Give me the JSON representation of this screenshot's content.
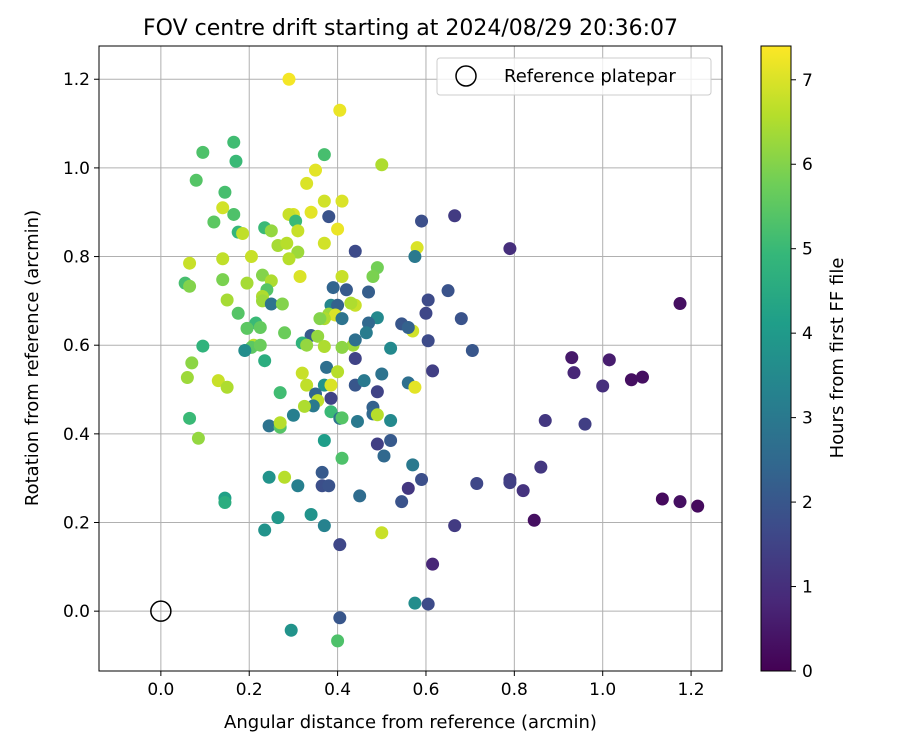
{
  "chart_data": {
    "type": "scatter",
    "title": "FOV centre drift starting at 2024/08/29 20:36:07",
    "xlabel": "Angular distance from reference (arcmin)",
    "ylabel": "Rotation from reference (arcmin)",
    "xlim": [
      -0.14,
      1.27
    ],
    "ylim": [
      -0.135,
      1.275
    ],
    "xticks": [
      "0.0",
      "0.2",
      "0.4",
      "0.6",
      "0.8",
      "1.0",
      "1.2"
    ],
    "yticks": [
      "0.0",
      "0.2",
      "0.4",
      "0.6",
      "0.8",
      "1.0",
      "1.2"
    ],
    "grid": true,
    "legend": {
      "placement": "top-right",
      "label": "Reference platepar"
    },
    "reference_point": {
      "x": 0.0,
      "y": 0.0,
      "marker": "hollow-circle"
    },
    "colorbar": {
      "label": "Hours from first FF file",
      "colormap": "viridis",
      "range": [
        0,
        7.4
      ],
      "ticks": [
        "0",
        "1",
        "2",
        "3",
        "4",
        "5",
        "6",
        "7"
      ]
    },
    "points": [
      [
        0.29,
        1.2,
        7.3
      ],
      [
        0.405,
        1.13,
        7.2
      ],
      [
        0.095,
        1.035,
        5.3
      ],
      [
        0.165,
        1.058,
        5.1
      ],
      [
        0.17,
        1.015,
        5.0
      ],
      [
        0.5,
        1.007,
        6.5
      ],
      [
        0.37,
        1.03,
        5.2
      ],
      [
        0.08,
        0.972,
        5.4
      ],
      [
        0.35,
        0.995,
        7.1
      ],
      [
        0.33,
        0.965,
        7.0
      ],
      [
        0.145,
        0.945,
        5.2
      ],
      [
        0.41,
        0.925,
        7.0
      ],
      [
        0.37,
        0.925,
        6.9
      ],
      [
        0.14,
        0.91,
        6.9
      ],
      [
        0.165,
        0.895,
        5.3
      ],
      [
        0.3,
        0.895,
        7.0
      ],
      [
        0.29,
        0.895,
        6.8
      ],
      [
        0.34,
        0.9,
        7.1
      ],
      [
        0.305,
        0.88,
        5.0
      ],
      [
        0.38,
        0.89,
        1.9
      ],
      [
        0.12,
        0.878,
        5.5
      ],
      [
        0.59,
        0.88,
        1.8
      ],
      [
        0.665,
        0.892,
        1.3
      ],
      [
        0.235,
        0.865,
        5.0
      ],
      [
        0.175,
        0.855,
        4.9
      ],
      [
        0.185,
        0.852,
        6.7
      ],
      [
        0.25,
        0.858,
        6.2
      ],
      [
        0.31,
        0.858,
        6.8
      ],
      [
        0.4,
        0.862,
        7.2
      ],
      [
        0.37,
        0.83,
        6.9
      ],
      [
        0.265,
        0.825,
        6.4
      ],
      [
        0.285,
        0.83,
        6.6
      ],
      [
        0.31,
        0.81,
        6.3
      ],
      [
        0.44,
        0.812,
        1.7
      ],
      [
        0.58,
        0.82,
        7.0
      ],
      [
        0.79,
        0.818,
        1.0
      ],
      [
        0.14,
        0.795,
        6.7
      ],
      [
        0.205,
        0.8,
        6.8
      ],
      [
        0.29,
        0.795,
        6.6
      ],
      [
        0.575,
        0.8,
        3.0
      ],
      [
        0.065,
        0.785,
        6.8
      ],
      [
        0.41,
        0.755,
        6.8
      ],
      [
        0.49,
        0.775,
        5.8
      ],
      [
        0.48,
        0.755,
        5.9
      ],
      [
        0.23,
        0.758,
        6.0
      ],
      [
        0.315,
        0.755,
        7.0
      ],
      [
        0.055,
        0.74,
        5.2
      ],
      [
        0.065,
        0.733,
        6.0
      ],
      [
        0.14,
        0.748,
        5.9
      ],
      [
        0.195,
        0.74,
        6.4
      ],
      [
        0.25,
        0.745,
        6.5
      ],
      [
        0.24,
        0.725,
        5.4
      ],
      [
        0.39,
        0.73,
        2.4
      ],
      [
        0.42,
        0.725,
        2.1
      ],
      [
        0.47,
        0.72,
        2.2
      ],
      [
        0.23,
        0.71,
        6.5
      ],
      [
        0.65,
        0.723,
        1.9
      ],
      [
        0.15,
        0.702,
        6.4
      ],
      [
        0.23,
        0.7,
        6.3
      ],
      [
        0.25,
        0.693,
        2.8
      ],
      [
        0.275,
        0.693,
        6.0
      ],
      [
        0.385,
        0.69,
        3.4
      ],
      [
        0.4,
        0.69,
        2.3
      ],
      [
        0.44,
        0.69,
        6.8
      ],
      [
        0.43,
        0.695,
        6.5
      ],
      [
        0.605,
        0.702,
        1.7
      ],
      [
        0.175,
        0.672,
        5.4
      ],
      [
        0.38,
        0.67,
        6.3
      ],
      [
        0.395,
        0.668,
        7.0
      ],
      [
        0.37,
        0.66,
        6.5
      ],
      [
        0.41,
        0.66,
        2.8
      ],
      [
        0.36,
        0.66,
        6.0
      ],
      [
        0.49,
        0.662,
        3.5
      ],
      [
        0.47,
        0.65,
        2.5
      ],
      [
        0.545,
        0.648,
        2.0
      ],
      [
        0.57,
        0.632,
        6.9
      ],
      [
        0.56,
        0.64,
        2.3
      ],
      [
        0.68,
        0.66,
        1.9
      ],
      [
        0.6,
        0.672,
        1.6
      ],
      [
        0.215,
        0.65,
        5.0
      ],
      [
        0.225,
        0.64,
        5.6
      ],
      [
        0.195,
        0.638,
        5.5
      ],
      [
        0.28,
        0.628,
        5.7
      ],
      [
        0.34,
        0.622,
        2.1
      ],
      [
        0.355,
        0.62,
        6.2
      ],
      [
        0.465,
        0.628,
        3.1
      ],
      [
        0.435,
        0.6,
        6.3
      ],
      [
        0.44,
        0.612,
        2.7
      ],
      [
        0.32,
        0.605,
        4.8
      ],
      [
        0.33,
        0.6,
        6.2
      ],
      [
        0.21,
        0.6,
        6.6
      ],
      [
        0.205,
        0.595,
        5.5
      ],
      [
        0.095,
        0.598,
        4.8
      ],
      [
        0.19,
        0.588,
        3.6
      ],
      [
        0.225,
        0.6,
        5.7
      ],
      [
        0.37,
        0.597,
        6.5
      ],
      [
        0.41,
        0.595,
        6.1
      ],
      [
        0.52,
        0.593,
        3.5
      ],
      [
        0.605,
        0.61,
        1.7
      ],
      [
        0.705,
        0.588,
        2.0
      ],
      [
        0.44,
        0.57,
        1.5
      ],
      [
        0.235,
        0.565,
        4.6
      ],
      [
        0.07,
        0.56,
        6.1
      ],
      [
        0.375,
        0.55,
        2.7
      ],
      [
        0.06,
        0.527,
        6.3
      ],
      [
        0.13,
        0.52,
        6.8
      ],
      [
        0.15,
        0.505,
        6.5
      ],
      [
        0.32,
        0.537,
        6.8
      ],
      [
        0.33,
        0.51,
        6.7
      ],
      [
        0.37,
        0.51,
        3.8
      ],
      [
        0.385,
        0.51,
        7.0
      ],
      [
        0.4,
        0.54,
        6.6
      ],
      [
        0.44,
        0.51,
        2.0
      ],
      [
        0.46,
        0.52,
        3.0
      ],
      [
        0.49,
        0.495,
        1.5
      ],
      [
        0.5,
        0.535,
        2.8
      ],
      [
        0.56,
        0.515,
        2.7
      ],
      [
        0.575,
        0.505,
        7.1
      ],
      [
        0.615,
        0.542,
        1.4
      ],
      [
        0.27,
        0.493,
        5.1
      ],
      [
        0.35,
        0.49,
        2.4
      ],
      [
        0.355,
        0.475,
        6.7
      ],
      [
        0.345,
        0.463,
        3.0
      ],
      [
        0.325,
        0.462,
        6.5
      ],
      [
        0.385,
        0.48,
        1.5
      ],
      [
        0.3,
        0.442,
        3.2
      ],
      [
        0.385,
        0.45,
        5.0
      ],
      [
        0.405,
        0.435,
        2.8
      ],
      [
        0.41,
        0.436,
        5.4
      ],
      [
        0.445,
        0.428,
        3.0
      ],
      [
        0.48,
        0.46,
        2.3
      ],
      [
        0.48,
        0.445,
        2.5
      ],
      [
        0.49,
        0.443,
        6.6
      ],
      [
        0.52,
        0.43,
        3.5
      ],
      [
        0.065,
        0.435,
        5.0
      ],
      [
        0.085,
        0.39,
        6.2
      ],
      [
        0.245,
        0.418,
        2.8
      ],
      [
        0.27,
        0.415,
        5.4
      ],
      [
        0.27,
        0.425,
        6.6
      ],
      [
        0.37,
        0.385,
        4.1
      ],
      [
        0.49,
        0.377,
        1.4
      ],
      [
        0.52,
        0.385,
        2.1
      ],
      [
        0.505,
        0.35,
        2.5
      ],
      [
        0.57,
        0.33,
        3.0
      ],
      [
        0.41,
        0.345,
        5.3
      ],
      [
        0.365,
        0.313,
        2.1
      ],
      [
        0.86,
        0.325,
        1.2
      ],
      [
        0.59,
        0.297,
        1.8
      ],
      [
        0.245,
        0.302,
        3.8
      ],
      [
        0.28,
        0.302,
        6.6
      ],
      [
        0.31,
        0.283,
        3.2
      ],
      [
        0.365,
        0.283,
        1.8
      ],
      [
        0.38,
        0.283,
        1.9
      ],
      [
        0.56,
        0.277,
        1.2
      ],
      [
        0.715,
        0.288,
        1.6
      ],
      [
        0.79,
        0.297,
        1.3
      ],
      [
        0.79,
        0.29,
        1.4
      ],
      [
        0.82,
        0.272,
        1.1
      ],
      [
        0.45,
        0.26,
        2.6
      ],
      [
        0.545,
        0.247,
        1.9
      ],
      [
        0.145,
        0.255,
        4.2
      ],
      [
        0.145,
        0.245,
        4.6
      ],
      [
        0.265,
        0.211,
        3.9
      ],
      [
        0.34,
        0.218,
        3.8
      ],
      [
        0.37,
        0.193,
        3.3
      ],
      [
        0.665,
        0.193,
        1.3
      ],
      [
        0.845,
        0.205,
        0.3
      ],
      [
        0.235,
        0.183,
        3.8
      ],
      [
        0.5,
        0.177,
        6.8
      ],
      [
        0.405,
        0.15,
        1.6
      ],
      [
        0.615,
        0.106,
        0.8
      ],
      [
        0.575,
        0.018,
        3.6
      ],
      [
        0.605,
        0.016,
        1.7
      ],
      [
        0.295,
        -0.043,
        3.8
      ],
      [
        0.405,
        -0.015,
        2.0
      ],
      [
        0.4,
        -0.067,
        5.3
      ],
      [
        0.93,
        0.572,
        0.5
      ],
      [
        1.015,
        0.567,
        0.6
      ],
      [
        0.935,
        0.538,
        0.8
      ],
      [
        1.065,
        0.522,
        0.3
      ],
      [
        1.09,
        0.528,
        0.3
      ],
      [
        1.0,
        0.508,
        1.0
      ],
      [
        0.87,
        0.43,
        1.2
      ],
      [
        0.96,
        0.422,
        1.4
      ],
      [
        1.175,
        0.694,
        0.3
      ],
      [
        1.135,
        0.253,
        0.2
      ],
      [
        1.175,
        0.247,
        0.3
      ],
      [
        1.215,
        0.237,
        0.2
      ]
    ]
  }
}
